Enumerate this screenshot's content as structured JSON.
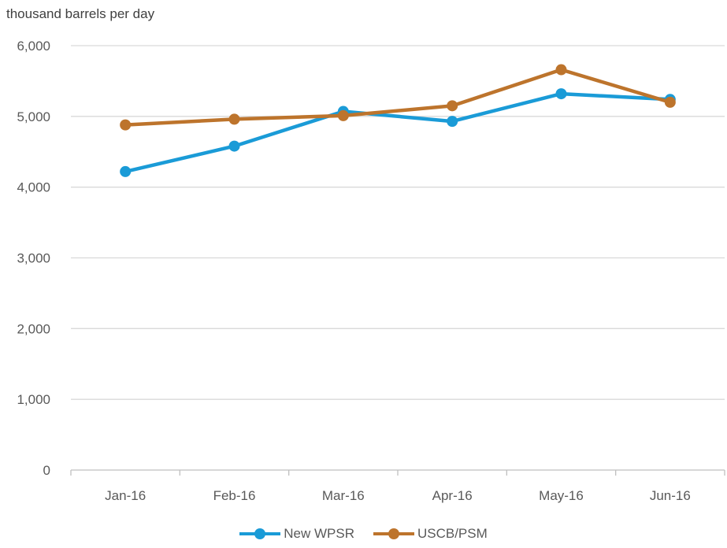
{
  "chart_data": {
    "type": "line",
    "ylabel": "thousand barrels per day",
    "categories": [
      "Jan-16",
      "Feb-16",
      "Mar-16",
      "Apr-16",
      "May-16",
      "Jun-16"
    ],
    "ylim": [
      0,
      6000
    ],
    "yticks": [
      0,
      1000,
      2000,
      3000,
      4000,
      5000,
      6000
    ],
    "ytick_labels": [
      "0",
      "1,000",
      "2,000",
      "3,000",
      "4,000",
      "5,000",
      "6,000"
    ],
    "grid": true,
    "legend_position": "bottom",
    "series": [
      {
        "name": "New WPSR",
        "color": "#1a9bd7",
        "values": [
          4220,
          4580,
          5070,
          4930,
          5320,
          5240
        ]
      },
      {
        "name": "USCB/PSM",
        "color": "#bd742c",
        "values": [
          4880,
          4960,
          5010,
          5150,
          5660,
          5200
        ]
      }
    ]
  }
}
